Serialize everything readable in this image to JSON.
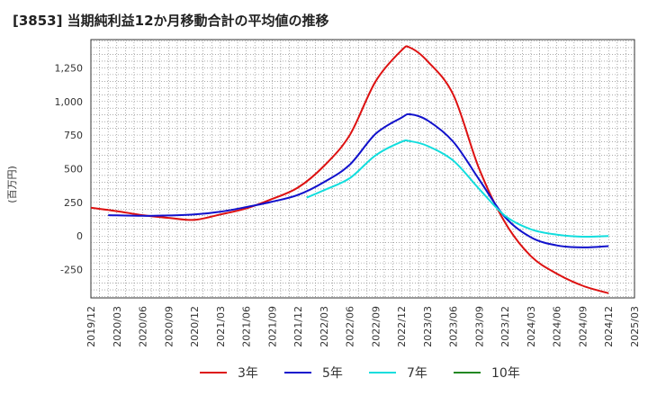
{
  "chart_data": {
    "type": "line",
    "title": "[3853]  当期純利益12か月移動合計の平均値の推移",
    "ylabel": "(百万円)",
    "xlabel": "",
    "ylim": [
      -460,
      1460
    ],
    "yticks": [
      -250,
      0,
      250,
      500,
      750,
      1000,
      1250
    ],
    "ytick_labels": [
      "-250",
      "0",
      "250",
      "500",
      "750",
      "1,000",
      "1,250"
    ],
    "x_tick_labels": [
      "2019/12",
      "2020/03",
      "2020/06",
      "2020/09",
      "2020/12",
      "2021/03",
      "2021/06",
      "2021/09",
      "2021/12",
      "2022/03",
      "2022/06",
      "2022/09",
      "2022/12",
      "2023/03",
      "2023/06",
      "2023/09",
      "2023/12",
      "2024/03",
      "2024/06",
      "2024/09",
      "2024/12",
      "2025/03"
    ],
    "grid": true,
    "legend_position": "bottom",
    "series": [
      {
        "name": "3年",
        "color": "#dd1111",
        "x": [
          "2019/12",
          "2020/03",
          "2020/06",
          "2020/09",
          "2020/12",
          "2021/03",
          "2021/06",
          "2021/09",
          "2021/12",
          "2022/03",
          "2022/06",
          "2022/09",
          "2022/12",
          "2023/01",
          "2023/03",
          "2023/06",
          "2023/09",
          "2023/12",
          "2024/03",
          "2024/06",
          "2024/09",
          "2024/12"
        ],
        "values": [
          210,
          185,
          155,
          135,
          120,
          160,
          205,
          275,
          360,
          520,
          750,
          1150,
          1380,
          1400,
          1300,
          1050,
          500,
          100,
          -150,
          -280,
          -370,
          -425
        ]
      },
      {
        "name": "5年",
        "color": "#1111cc",
        "x": [
          "2020/02",
          "2020/06",
          "2020/09",
          "2020/12",
          "2021/03",
          "2021/06",
          "2021/09",
          "2021/12",
          "2022/03",
          "2022/06",
          "2022/09",
          "2022/12",
          "2023/01",
          "2023/03",
          "2023/06",
          "2023/09",
          "2023/12",
          "2024/03",
          "2024/06",
          "2024/09",
          "2024/12"
        ],
        "values": [
          155,
          150,
          153,
          160,
          180,
          215,
          255,
          305,
          400,
          530,
          760,
          880,
          905,
          860,
          700,
          420,
          140,
          -10,
          -70,
          -85,
          -75
        ]
      },
      {
        "name": "7年",
        "color": "#11dddd",
        "x": [
          "2022/01",
          "2022/03",
          "2022/06",
          "2022/09",
          "2022/12",
          "2023/01",
          "2023/03",
          "2023/06",
          "2023/09",
          "2023/12",
          "2024/03",
          "2024/06",
          "2024/09",
          "2024/12"
        ],
        "values": [
          285,
          340,
          430,
          600,
          700,
          705,
          670,
          560,
          350,
          150,
          50,
          10,
          -5,
          0
        ]
      },
      {
        "name": "10年",
        "color": "#228822",
        "x": [],
        "values": []
      }
    ]
  }
}
